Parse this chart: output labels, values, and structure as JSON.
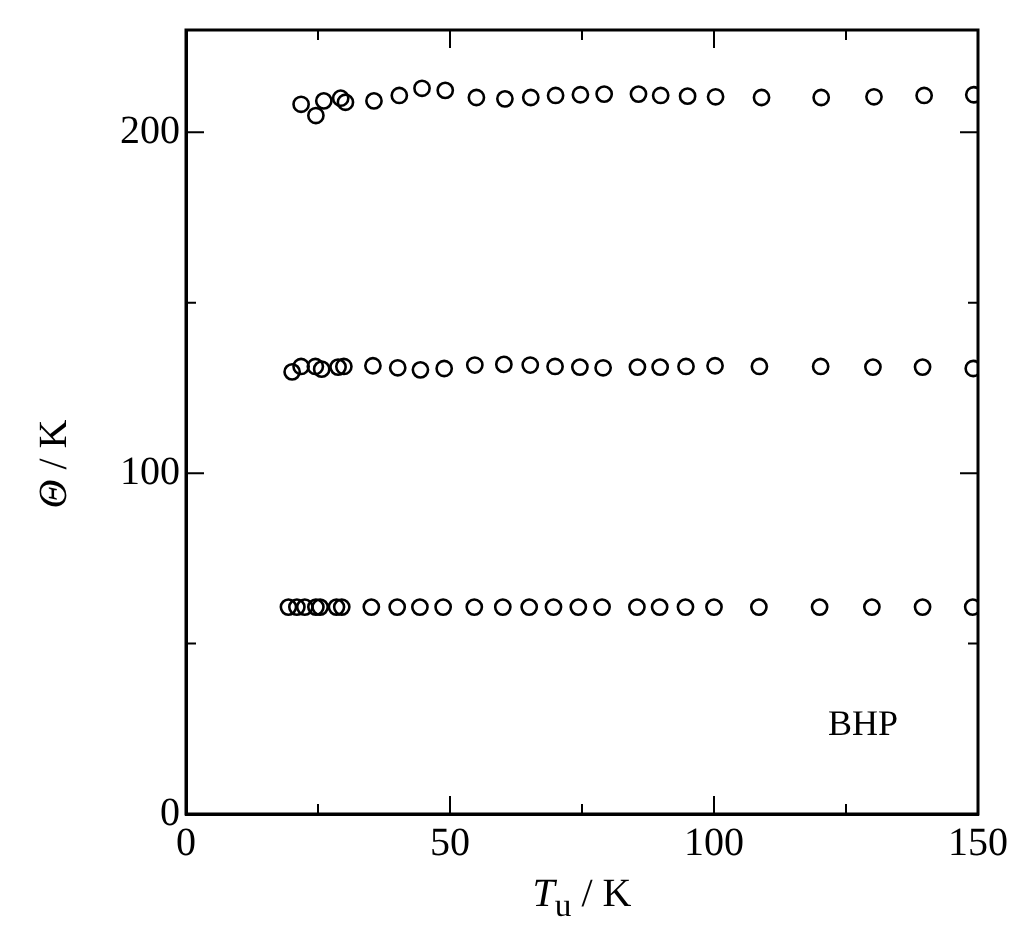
{
  "chart_data": {
    "type": "scatter",
    "xlabel": "T$_{u}$ / K",
    "ylabel": "Θ / K",
    "annotations": [
      "BHP"
    ],
    "xlim": [
      0,
      150
    ],
    "xticks": [
      0,
      {
        "value": 25,
        "label": null
      },
      50,
      {
        "value": 75,
        "label": null
      },
      100,
      {
        "value": 125,
        "label": null
      },
      150
    ],
    "ylim": [
      0,
      230
    ],
    "yticks": [
      0,
      {
        "value": 50,
        "label": null
      },
      100,
      {
        "value": 150,
        "label": null
      },
      200
    ],
    "grid": false,
    "legend": false,
    "marker": "circle",
    "series": [
      {
        "color": "#000000",
        "x": [
          21.8,
          24.6,
          26.1,
          29.3,
          30.2,
          35.6,
          40.4,
          44.7,
          49.1,
          55.0,
          60.4,
          65.3,
          70.0,
          74.7,
          79.2,
          85.7,
          89.9,
          95.0,
          100.3,
          109.0,
          120.3,
          130.3,
          139.8,
          149.2
        ],
        "values": [
          208.2,
          204.9,
          209.2,
          210.0,
          208.8,
          209.2,
          210.8,
          212.9,
          212.3,
          210.2,
          209.8,
          210.2,
          210.8,
          211.0,
          211.2,
          211.2,
          210.8,
          210.6,
          210.4,
          210.2,
          210.2,
          210.4,
          210.8,
          211.0
        ]
      },
      {
        "color": "#000000",
        "x": [
          20.1,
          21.8,
          24.5,
          25.7,
          28.8,
          29.9,
          35.4,
          40.1,
          44.4,
          48.9,
          54.7,
          60.2,
          65.2,
          69.9,
          74.6,
          79.0,
          85.5,
          89.8,
          94.7,
          100.2,
          108.6,
          120.2,
          130.1,
          139.5,
          149.1
        ],
        "values": [
          129.7,
          131.3,
          131.3,
          130.5,
          131.1,
          131.3,
          131.5,
          130.9,
          130.3,
          130.7,
          131.7,
          131.9,
          131.7,
          131.3,
          131.1,
          130.9,
          131.1,
          131.1,
          131.3,
          131.5,
          131.3,
          131.3,
          131.1,
          131.1,
          130.7
        ]
      },
      {
        "color": "#000000",
        "x": [
          19.4,
          21.0,
          22.5,
          24.6,
          25.4,
          28.5,
          29.5,
          35.1,
          40.0,
          44.3,
          48.7,
          54.6,
          60.0,
          65.0,
          69.6,
          74.3,
          78.8,
          85.4,
          89.7,
          94.6,
          100.0,
          108.5,
          120.0,
          129.9,
          139.5,
          149.0
        ],
        "values": [
          60.7,
          60.7,
          60.7,
          60.7,
          60.7,
          60.7,
          60.7,
          60.7,
          60.7,
          60.7,
          60.7,
          60.7,
          60.7,
          60.7,
          60.7,
          60.7,
          60.7,
          60.7,
          60.7,
          60.7,
          60.7,
          60.7,
          60.7,
          60.7,
          60.7,
          60.7
        ]
      }
    ]
  }
}
